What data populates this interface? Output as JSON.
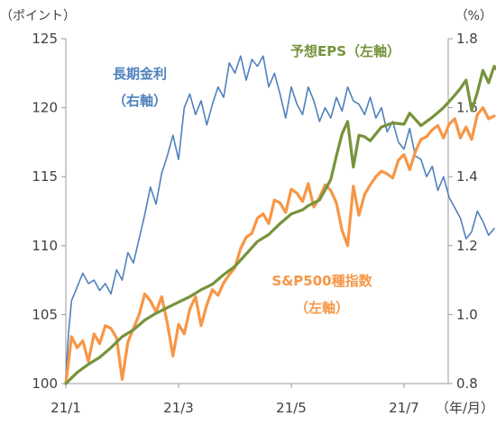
{
  "chart_data": {
    "type": "line",
    "left_axis_unit": "（ポイント）",
    "right_axis_unit": "（%）",
    "x_axis_unit": "（年/月）",
    "x_tick_labels": [
      "21/1",
      "21/3",
      "21/5",
      "21/7"
    ],
    "left_ylim": [
      100,
      125
    ],
    "left_yticks": [
      100,
      105,
      110,
      115,
      120,
      125
    ],
    "right_ylim": [
      0.8,
      1.8
    ],
    "right_yticks": [
      "0.8",
      "1.0",
      "1.2",
      "1.4",
      "1.6",
      "1.8"
    ],
    "x_range_months": [
      0,
      7.7
    ],
    "grid": false,
    "series": [
      {
        "label_lines": [
          "長期金利",
          "（右軸）"
        ],
        "axis": "right",
        "color": "#4F81BD",
        "x": [
          0,
          0.05,
          0.1,
          0.2,
          0.3,
          0.4,
          0.5,
          0.6,
          0.7,
          0.8,
          0.9,
          1.0,
          1.1,
          1.2,
          1.3,
          1.4,
          1.5,
          1.6,
          1.7,
          1.8,
          1.9,
          2.0,
          2.1,
          2.2,
          2.3,
          2.4,
          2.5,
          2.6,
          2.7,
          2.8,
          2.9,
          3.0,
          3.1,
          3.2,
          3.3,
          3.4,
          3.5,
          3.6,
          3.7,
          3.8,
          3.9,
          4.0,
          4.1,
          4.2,
          4.3,
          4.4,
          4.5,
          4.6,
          4.7,
          4.8,
          4.9,
          5.0,
          5.1,
          5.2,
          5.3,
          5.4,
          5.5,
          5.6,
          5.7,
          5.8,
          5.9,
          6.0,
          6.1,
          6.2,
          6.3,
          6.4,
          6.5,
          6.6,
          6.7,
          6.8,
          6.9,
          7.0,
          7.1,
          7.2,
          7.3,
          7.4,
          7.5,
          7.6
        ],
        "values": [
          0.82,
          0.95,
          1.04,
          1.08,
          1.12,
          1.09,
          1.1,
          1.07,
          1.09,
          1.06,
          1.13,
          1.1,
          1.18,
          1.15,
          1.22,
          1.29,
          1.37,
          1.32,
          1.41,
          1.46,
          1.52,
          1.45,
          1.6,
          1.64,
          1.58,
          1.62,
          1.55,
          1.61,
          1.66,
          1.63,
          1.73,
          1.7,
          1.75,
          1.68,
          1.74,
          1.72,
          1.75,
          1.66,
          1.7,
          1.64,
          1.57,
          1.66,
          1.61,
          1.58,
          1.66,
          1.62,
          1.56,
          1.6,
          1.57,
          1.63,
          1.59,
          1.66,
          1.62,
          1.61,
          1.58,
          1.63,
          1.57,
          1.6,
          1.53,
          1.56,
          1.5,
          1.48,
          1.54,
          1.46,
          1.45,
          1.4,
          1.43,
          1.36,
          1.4,
          1.34,
          1.31,
          1.28,
          1.22,
          1.24,
          1.3,
          1.27,
          1.23,
          1.25
        ]
      },
      {
        "label": "予想EPS（左軸）",
        "axis": "left",
        "color": "#77933C",
        "x": [
          0,
          0.2,
          0.4,
          0.6,
          0.8,
          1.0,
          1.2,
          1.4,
          1.6,
          1.8,
          2.0,
          2.2,
          2.4,
          2.6,
          2.8,
          3.0,
          3.2,
          3.4,
          3.6,
          3.8,
          4.0,
          4.2,
          4.3,
          4.5,
          4.7,
          4.8,
          4.9,
          5.0,
          5.1,
          5.2,
          5.3,
          5.4,
          5.6,
          5.8,
          6.0,
          6.1,
          6.3,
          6.5,
          6.7,
          6.9,
          7.0,
          7.1,
          7.2,
          7.3,
          7.4,
          7.5,
          7.6,
          7.7
        ],
        "values": [
          100.0,
          100.8,
          101.4,
          101.9,
          102.6,
          103.4,
          103.9,
          104.6,
          105.1,
          105.5,
          105.9,
          106.3,
          106.8,
          107.2,
          107.9,
          108.5,
          109.4,
          110.3,
          110.8,
          111.6,
          112.3,
          112.6,
          112.9,
          113.3,
          114.8,
          116.5,
          118.1,
          119.0,
          115.7,
          118.0,
          117.9,
          117.6,
          118.6,
          118.9,
          118.8,
          119.6,
          118.7,
          119.3,
          120.0,
          120.9,
          121.4,
          122.0,
          119.8,
          121.1,
          122.7,
          121.8,
          123.0,
          122.5
        ]
      },
      {
        "label_lines": [
          "S&P500種指数",
          "（左軸）"
        ],
        "axis": "left",
        "color": "#F79646",
        "x": [
          0,
          0.1,
          0.2,
          0.3,
          0.4,
          0.5,
          0.6,
          0.7,
          0.8,
          0.9,
          1.0,
          1.1,
          1.2,
          1.3,
          1.4,
          1.5,
          1.6,
          1.7,
          1.8,
          1.9,
          2.0,
          2.1,
          2.2,
          2.3,
          2.4,
          2.5,
          2.6,
          2.7,
          2.8,
          2.9,
          3.0,
          3.1,
          3.2,
          3.3,
          3.4,
          3.5,
          3.6,
          3.7,
          3.8,
          3.9,
          4.0,
          4.1,
          4.2,
          4.3,
          4.4,
          4.5,
          4.6,
          4.7,
          4.8,
          4.9,
          5.0,
          5.1,
          5.2,
          5.3,
          5.4,
          5.5,
          5.6,
          5.7,
          5.8,
          5.9,
          6.0,
          6.1,
          6.2,
          6.3,
          6.4,
          6.5,
          6.6,
          6.7,
          6.8,
          6.9,
          7.0,
          7.1,
          7.2,
          7.3,
          7.4,
          7.5,
          7.6
        ],
        "values": [
          100.0,
          103.4,
          102.6,
          103.1,
          101.6,
          103.6,
          102.9,
          104.2,
          104.0,
          103.3,
          100.3,
          103.0,
          104.0,
          105.0,
          106.5,
          106.0,
          105.2,
          106.3,
          104.4,
          102.0,
          104.3,
          103.6,
          105.4,
          106.3,
          104.2,
          105.7,
          106.8,
          106.4,
          107.3,
          107.9,
          108.4,
          109.8,
          110.6,
          110.9,
          112.0,
          112.3,
          111.6,
          113.3,
          113.1,
          112.4,
          114.1,
          113.8,
          113.2,
          114.5,
          112.8,
          113.5,
          114.4,
          114.0,
          113.1,
          111.1,
          110.0,
          114.3,
          112.2,
          113.7,
          114.4,
          115.0,
          115.4,
          115.2,
          114.9,
          116.2,
          116.6,
          115.5,
          116.8,
          117.7,
          117.9,
          118.4,
          118.7,
          117.8,
          118.8,
          119.2,
          117.8,
          118.6,
          117.7,
          119.5,
          120.0,
          119.2,
          119.4
        ]
      }
    ]
  },
  "colors": {
    "axis": "#999999",
    "text": "#404040"
  }
}
